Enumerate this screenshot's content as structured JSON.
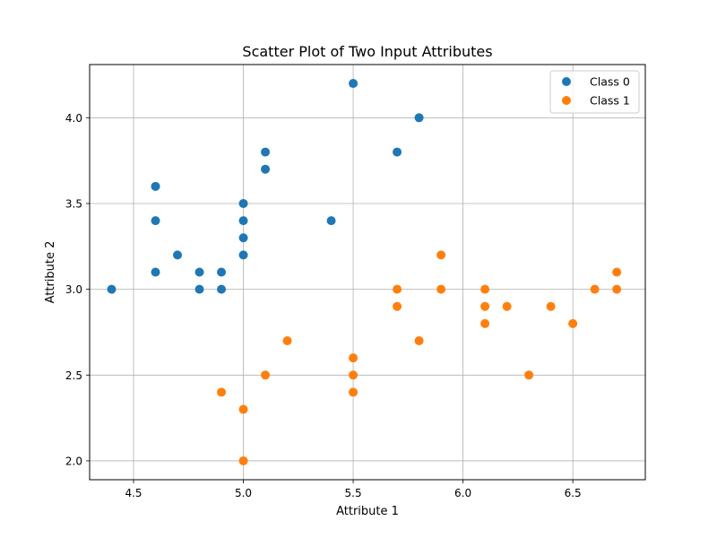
{
  "chart_data": {
    "type": "scatter",
    "title": "Scatter Plot of Two Input Attributes",
    "xlabel": "Attribute 1",
    "ylabel": "Attribute 2",
    "xlim": [
      4.3,
      6.83
    ],
    "ylim": [
      1.89,
      4.31
    ],
    "xticks": [
      4.5,
      5.0,
      5.5,
      6.0,
      6.5
    ],
    "yticks": [
      2.0,
      2.5,
      3.0,
      3.5,
      4.0
    ],
    "xtick_labels": [
      "4.5",
      "5.0",
      "5.5",
      "6.0",
      "6.5"
    ],
    "ytick_labels": [
      "2.0",
      "2.5",
      "3.0",
      "3.5",
      "4.0"
    ],
    "grid": true,
    "legend_position": "top-right",
    "series": [
      {
        "name": "Class 0",
        "color": "#1f77b4",
        "points": [
          [
            4.4,
            3.0
          ],
          [
            4.6,
            3.6
          ],
          [
            4.6,
            3.4
          ],
          [
            4.6,
            3.1
          ],
          [
            4.7,
            3.2
          ],
          [
            4.8,
            3.1
          ],
          [
            4.8,
            3.0
          ],
          [
            4.9,
            3.1
          ],
          [
            4.9,
            3.0
          ],
          [
            5.0,
            3.5
          ],
          [
            5.0,
            3.4
          ],
          [
            5.0,
            3.3
          ],
          [
            5.0,
            3.2
          ],
          [
            5.1,
            3.8
          ],
          [
            5.1,
            3.7
          ],
          [
            5.4,
            3.4
          ],
          [
            5.5,
            4.2
          ],
          [
            5.7,
            3.8
          ],
          [
            5.8,
            4.0
          ]
        ]
      },
      {
        "name": "Class 1",
        "color": "#ff7f0e",
        "points": [
          [
            4.9,
            2.4
          ],
          [
            5.0,
            2.3
          ],
          [
            5.0,
            2.0
          ],
          [
            5.1,
            2.5
          ],
          [
            5.2,
            2.7
          ],
          [
            5.5,
            2.6
          ],
          [
            5.5,
            2.5
          ],
          [
            5.5,
            2.4
          ],
          [
            5.7,
            3.0
          ],
          [
            5.7,
            2.9
          ],
          [
            5.8,
            2.7
          ],
          [
            5.9,
            3.2
          ],
          [
            5.9,
            3.0
          ],
          [
            6.1,
            3.0
          ],
          [
            6.1,
            2.9
          ],
          [
            6.1,
            2.8
          ],
          [
            6.2,
            2.9
          ],
          [
            6.3,
            2.5
          ],
          [
            6.4,
            2.9
          ],
          [
            6.5,
            2.8
          ],
          [
            6.6,
            3.0
          ],
          [
            6.7,
            3.1
          ],
          [
            6.7,
            3.0
          ]
        ]
      }
    ]
  }
}
